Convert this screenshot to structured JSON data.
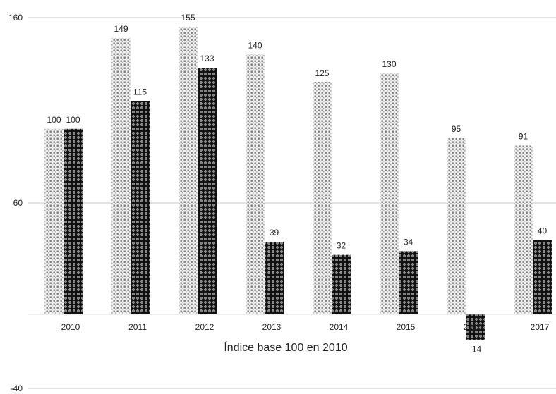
{
  "chart_data": {
    "type": "bar",
    "categories": [
      "2010",
      "2011",
      "2012",
      "2013",
      "2014",
      "2015",
      "2016",
      "2017"
    ],
    "series": [
      {
        "name": "",
        "values": [
          100,
          149,
          155,
          140,
          125,
          130,
          95,
          91
        ],
        "pattern": "light-dotted",
        "color": "#9a9a9a"
      },
      {
        "name": "",
        "values": [
          100,
          115,
          133,
          39,
          32,
          34,
          -14,
          40
        ],
        "pattern": "dark-circles",
        "color": "#1a1a1a"
      }
    ],
    "yticks": [
      "160",
      "60",
      "-40"
    ],
    "ylim": [
      -40,
      160
    ],
    "xlabel": "Índice base 100 en 2010",
    "ylabel": "",
    "title": "",
    "grid": true
  }
}
